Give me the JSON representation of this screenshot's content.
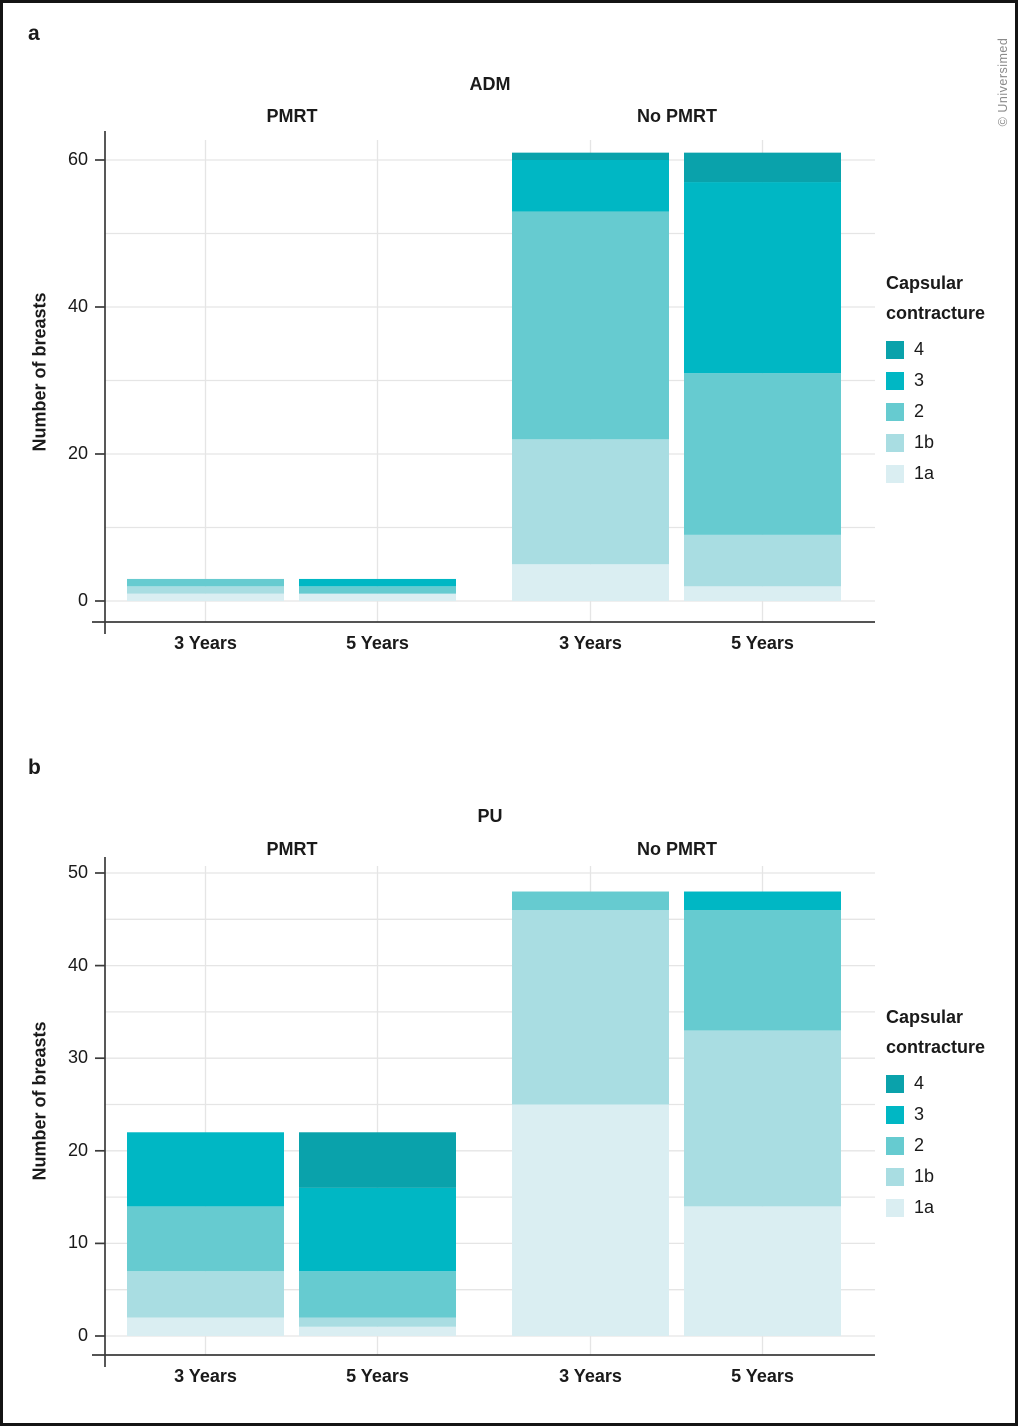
{
  "page": {
    "copyright": "© Universimed"
  },
  "legend": {
    "title": "Capsular contracture",
    "items": [
      {
        "label": "4",
        "color": "#0aa2ab"
      },
      {
        "label": "3",
        "color": "#00b7c4"
      },
      {
        "label": "2",
        "color": "#66cbd0"
      },
      {
        "label": "1b",
        "color": "#a9dde2"
      },
      {
        "label": "1a",
        "color": "#daeef2"
      }
    ]
  },
  "chart_data": [
    {
      "type": "bar",
      "stacked": true,
      "panel_label": "a",
      "title": "ADM",
      "ylabel": "Number of breasts",
      "ylim": [
        0,
        62
      ],
      "yticks": [
        0,
        20,
        40,
        60
      ],
      "grid_step": 10,
      "grid": true,
      "legend_position": "right",
      "facets": [
        {
          "label": "PMRT",
          "bars": [
            {
              "category": "3 Years",
              "segments": {
                "1a": 1,
                "1b": 1,
                "2": 1
              },
              "total": 3
            },
            {
              "category": "5 Years",
              "segments": {
                "1a": 1,
                "2": 1,
                "3": 1
              },
              "total": 3
            }
          ]
        },
        {
          "label": "No PMRT",
          "bars": [
            {
              "category": "3 Years",
              "segments": {
                "1a": 5,
                "1b": 17,
                "2": 31,
                "3": 7,
                "4": 1
              },
              "total": 61
            },
            {
              "category": "5 Years",
              "segments": {
                "1a": 2,
                "1b": 7,
                "2": 22,
                "3": 26,
                "4": 4
              },
              "total": 61
            }
          ]
        }
      ]
    },
    {
      "type": "bar",
      "stacked": true,
      "panel_label": "b",
      "title": "PU",
      "ylabel": "Number of breasts",
      "ylim": [
        0,
        50
      ],
      "yticks": [
        0,
        10,
        20,
        30,
        40,
        50
      ],
      "grid_step": 5,
      "grid": true,
      "legend_position": "right",
      "facets": [
        {
          "label": "PMRT",
          "bars": [
            {
              "category": "3 Years",
              "segments": {
                "1a": 2,
                "1b": 5,
                "2": 7,
                "3": 8
              },
              "total": 22
            },
            {
              "category": "5 Years",
              "segments": {
                "1a": 1,
                "1b": 1,
                "2": 5,
                "3": 9,
                "4": 6
              },
              "total": 22
            }
          ]
        },
        {
          "label": "No PMRT",
          "bars": [
            {
              "category": "3 Years",
              "segments": {
                "1a": 25,
                "1b": 21,
                "2": 2
              },
              "total": 48
            },
            {
              "category": "5 Years",
              "segments": {
                "1a": 14,
                "1b": 19,
                "2": 13,
                "3": 2
              },
              "total": 48
            }
          ]
        }
      ]
    }
  ]
}
